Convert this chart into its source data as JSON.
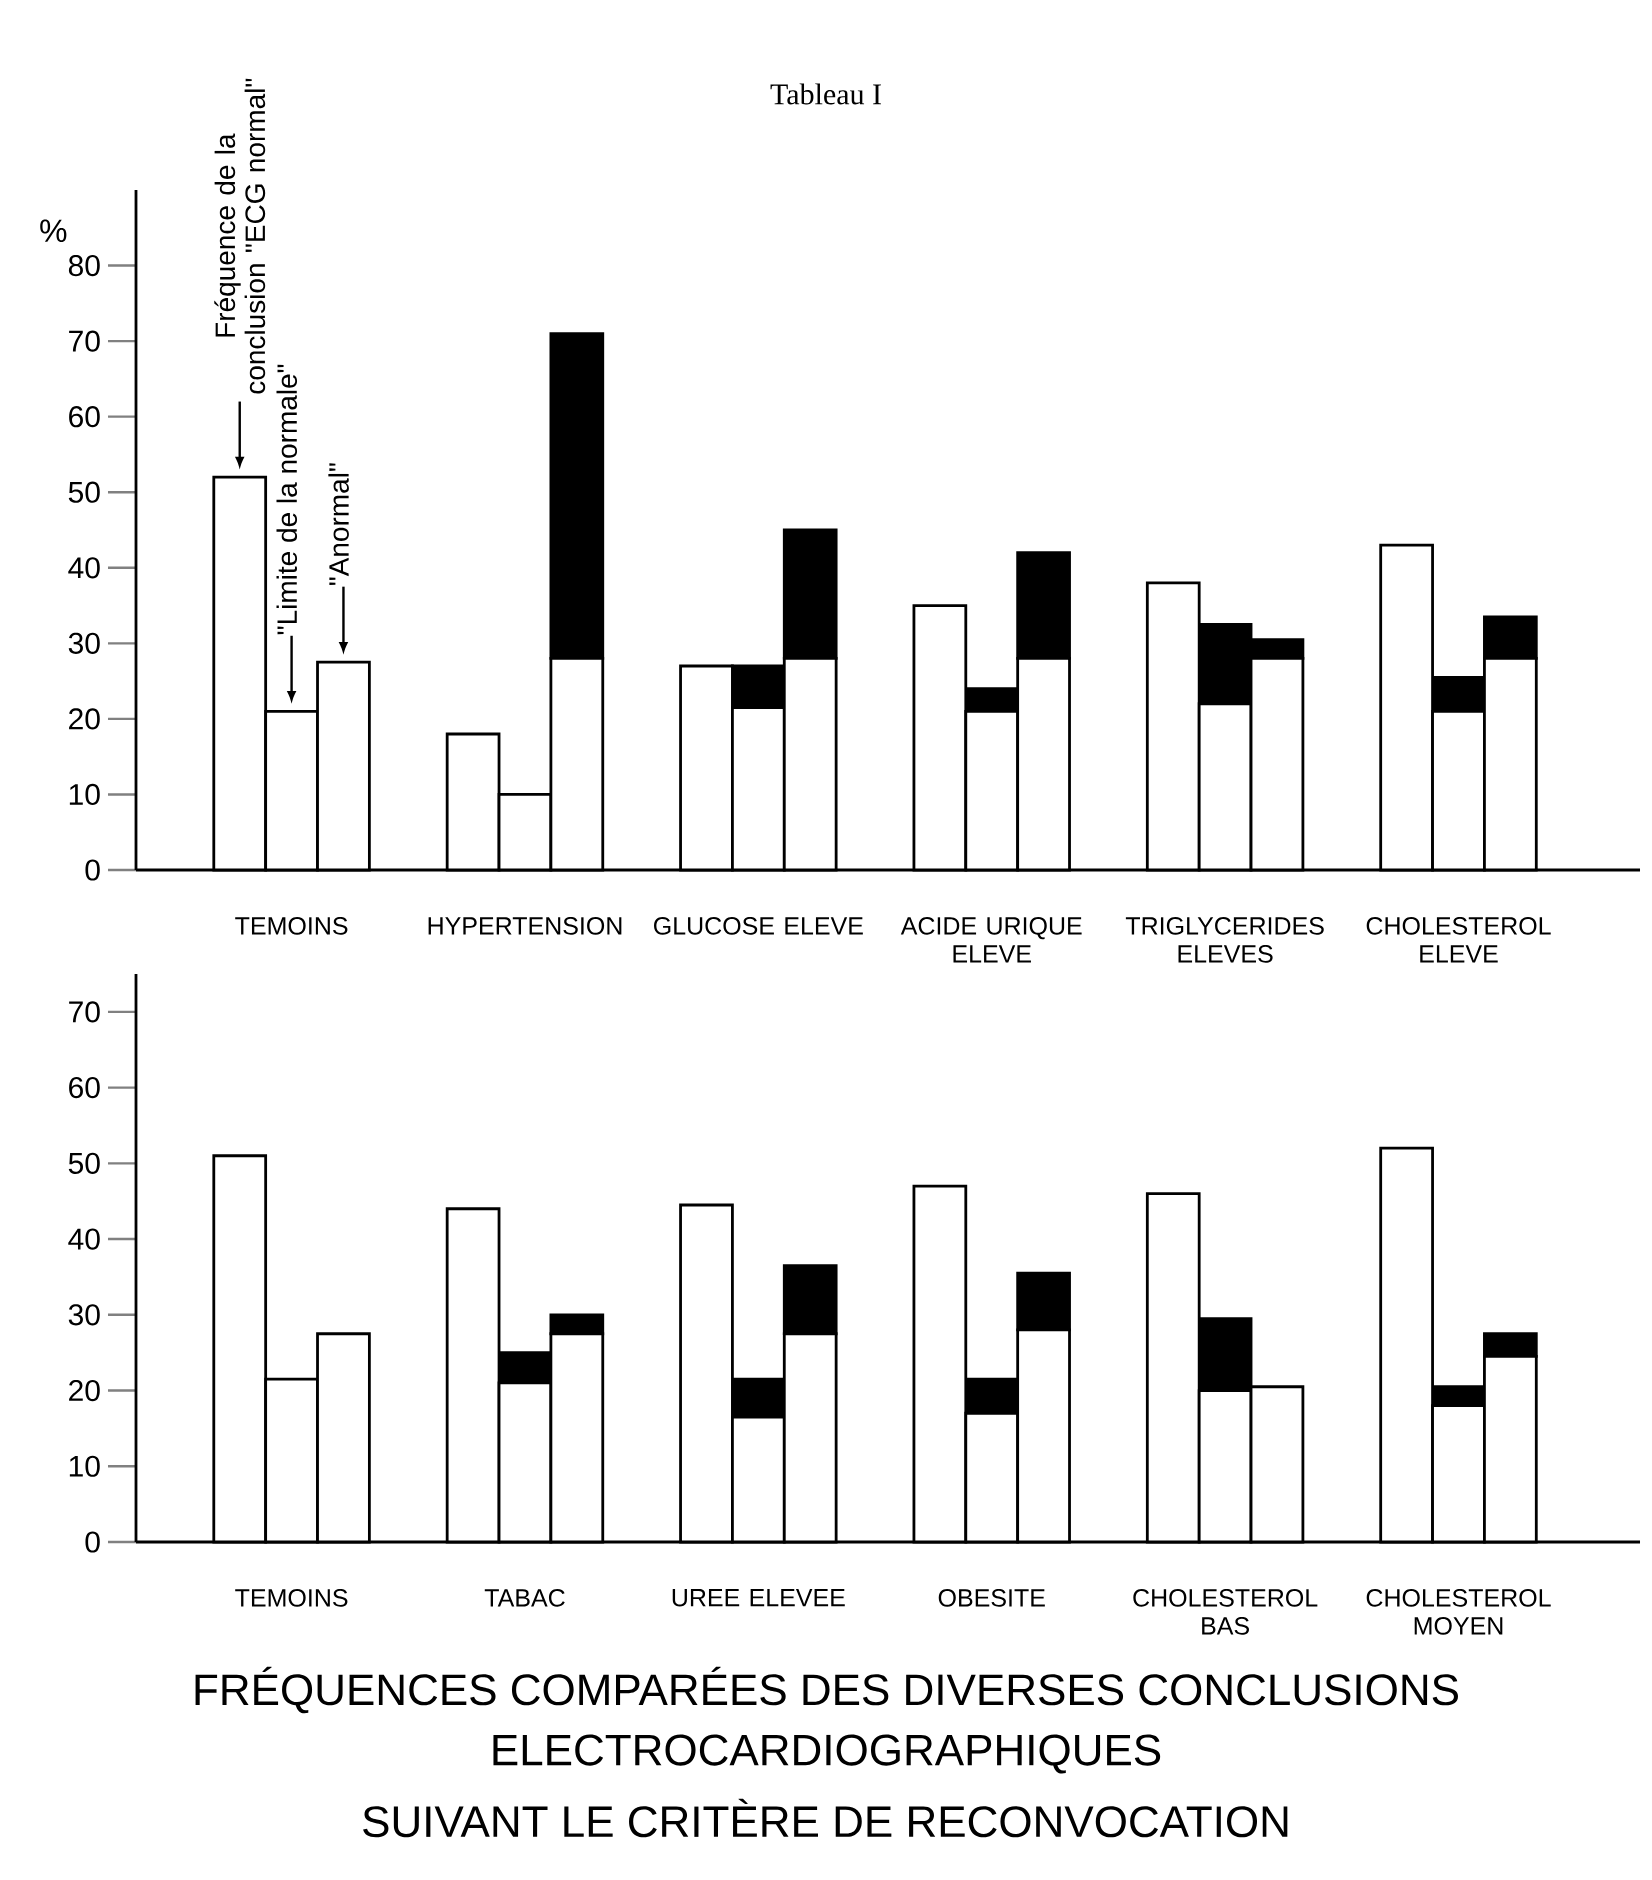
{
  "chart_data": [
    {
      "type": "bar",
      "title": "Tableau I",
      "ylabel": "%",
      "stacked": true,
      "categories": [
        null,
        "TEMOINS",
        null,
        null,
        "HYPERTENSION",
        null,
        null,
        "GLUCOSE ELEVE",
        null,
        null,
        "ACIDE URIQUE ELEVE",
        null,
        null,
        "TRIGLYCERIDES ELEVES",
        null,
        null,
        "CHOLESTEROL ELEVE",
        null
      ],
      "series": [
        {
          "color": "#ffffff",
          "values": [
            52,
            21,
            27.5,
            18,
            10,
            28,
            27,
            21.5,
            28,
            35,
            21,
            28,
            38,
            22,
            28,
            43,
            21,
            28
          ]
        },
        {
          "color": "#000000",
          "values": [
            0,
            0,
            0,
            0,
            0,
            43,
            0,
            5.5,
            17,
            0,
            3,
            14,
            0,
            10.5,
            2.5,
            0,
            4.5,
            5.5
          ]
        }
      ],
      "ylim": [
        0,
        90
      ],
      "yticks": [
        0,
        10,
        20,
        30,
        40,
        50,
        60,
        70,
        80
      ],
      "annotations": [
        {
          "text": "Fréquence de la conclusion \"ECG normal\"",
          "y": 52
        },
        {
          "text": "\"Limite de la normale\"",
          "y": 21
        },
        {
          "text": "\"Anormal\"",
          "y": 27.5
        }
      ]
    },
    {
      "type": "bar",
      "stacked": true,
      "categories": [
        null,
        "TEMOINS",
        null,
        null,
        "TABAC",
        null,
        null,
        "UREE ELEVEE",
        null,
        null,
        "OBESITE",
        null,
        null,
        "CHOLESTEROL BAS",
        null,
        null,
        "CHOLESTEROL MOYEN",
        null
      ],
      "series": [
        {
          "color": "#ffffff",
          "values": [
            51,
            21.5,
            27.5,
            44,
            21,
            27.5,
            44.5,
            16.5,
            27.5,
            47,
            17,
            28,
            46,
            20,
            20.5,
            52,
            18,
            24.5
          ]
        },
        {
          "color": "#000000",
          "values": [
            0,
            0,
            0,
            0,
            4,
            2.5,
            0,
            5,
            9,
            0,
            4.5,
            7.5,
            0,
            9.5,
            0,
            0,
            2.5,
            3
          ]
        }
      ],
      "ylim": [
        0,
        75
      ],
      "yticks": [
        0,
        10,
        20,
        30,
        40,
        50,
        60,
        70
      ],
      "annotations": [
        "FRÉQUENCES COMPARÉES DES DIVERSES CONCLUSIONS",
        "ELECTROCARDIOGRAPHIQUES",
        "SUIVANT LE CRITÈRE DE RECONVOCATION"
      ]
    }
  ]
}
